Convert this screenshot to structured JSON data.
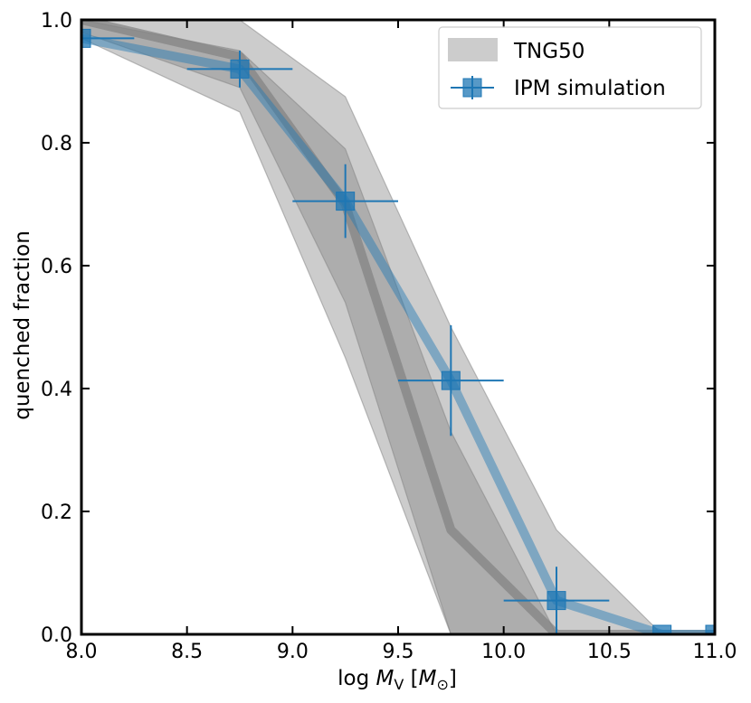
{
  "chart_data": {
    "type": "line",
    "xlabel": {
      "prefix": "log ",
      "var": "M",
      "sub": "V",
      "unit_open": " [",
      "unit_var": "M",
      "unit_sub": "⊙",
      "unit_close": "]"
    },
    "ylabel": "quenched fraction",
    "xlim": [
      8.0,
      11.0
    ],
    "ylim": [
      0.0,
      1.0
    ],
    "xticks": [
      "8.0",
      "8.5",
      "9.0",
      "9.5",
      "10.0",
      "10.5",
      "11.0"
    ],
    "yticks": [
      "0.0",
      "0.2",
      "0.4",
      "0.6",
      "0.8",
      "1.0"
    ],
    "legend": {
      "placement": "top-right",
      "entries": [
        "TNG50",
        "IPM simulation"
      ]
    },
    "series": [
      {
        "name": "TNG50",
        "kind": "band",
        "color": "#808080",
        "x": [
          8.0,
          8.75,
          9.25,
          9.75,
          10.25,
          10.75,
          11.0
        ],
        "median": [
          1.0,
          0.94,
          0.7,
          0.17,
          0.0,
          0.0,
          0.0
        ],
        "inner_low": [
          0.98,
          0.89,
          0.54,
          0.0,
          0.0,
          0.0,
          0.0
        ],
        "inner_high": [
          1.0,
          0.95,
          0.79,
          0.33,
          0.0,
          0.0,
          0.0
        ],
        "outer_low": [
          0.97,
          0.85,
          0.45,
          0.0,
          0.0,
          0.0,
          0.0
        ],
        "outer_high": [
          1.0,
          1.0,
          0.875,
          0.5,
          0.17,
          0.0,
          0.0
        ]
      },
      {
        "name": "IPM simulation",
        "kind": "points",
        "color": "#1f77b4",
        "x": [
          8.0,
          8.75,
          9.25,
          9.75,
          10.25,
          10.75,
          11.0
        ],
        "y": [
          0.97,
          0.92,
          0.705,
          0.413,
          0.055,
          0.0,
          0.0
        ],
        "xerr": [
          0.25,
          0.25,
          0.25,
          0.25,
          0.25,
          0.25,
          0.25
        ],
        "yerr": [
          0.02,
          0.03,
          0.06,
          0.09,
          0.055,
          0.0,
          0.0
        ]
      }
    ]
  }
}
